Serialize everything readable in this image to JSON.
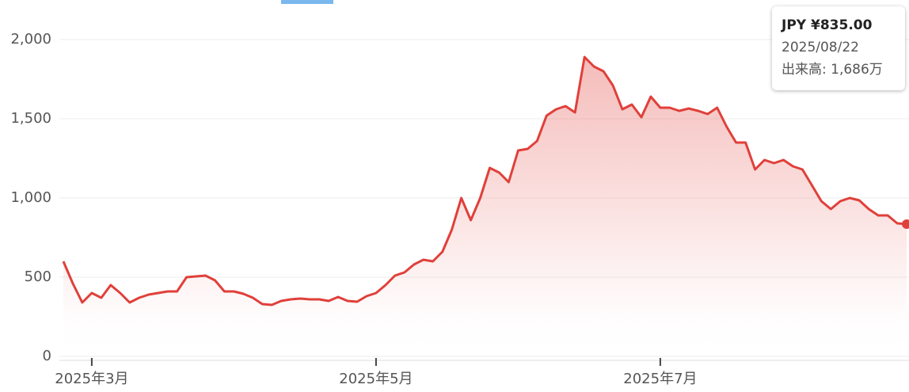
{
  "chart_data": {
    "type": "area",
    "color": "#e0403a",
    "categories": [
      null,
      null,
      null,
      "2025年3月",
      null,
      null,
      null,
      null,
      null,
      null,
      null,
      null,
      null,
      null,
      null,
      null,
      null,
      null,
      null,
      null,
      null,
      null,
      null,
      null,
      null,
      null,
      null,
      null,
      null,
      null,
      null,
      null,
      null,
      "2025年5月",
      null,
      null,
      null,
      null,
      null,
      null,
      null,
      null,
      null,
      null,
      null,
      null,
      null,
      null,
      null,
      null,
      null,
      null,
      null,
      null,
      null,
      null,
      null,
      null,
      null,
      null,
      null,
      null,
      null,
      "2025年7月",
      null,
      null,
      null,
      null,
      null,
      null,
      null,
      null,
      null,
      null,
      null,
      null,
      null,
      null,
      null,
      null,
      null,
      null,
      null,
      null,
      null,
      null,
      null,
      null,
      null,
      null
    ],
    "values": [
      600,
      460,
      340,
      400,
      370,
      450,
      400,
      340,
      370,
      390,
      400,
      410,
      410,
      500,
      505,
      510,
      480,
      410,
      410,
      395,
      370,
      330,
      325,
      350,
      360,
      365,
      360,
      360,
      350,
      375,
      350,
      345,
      380,
      400,
      450,
      510,
      530,
      580,
      610,
      600,
      660,
      800,
      1000,
      860,
      1000,
      1190,
      1160,
      1100,
      1300,
      1310,
      1360,
      1520,
      1560,
      1580,
      1540,
      1890,
      1830,
      1800,
      1710,
      1560,
      1590,
      1510,
      1640,
      1570,
      1570,
      1550,
      1565,
      1550,
      1530,
      1570,
      1450,
      1350,
      1350,
      1180,
      1240,
      1220,
      1240,
      1200,
      1180,
      1080,
      980,
      930,
      980,
      1000,
      985,
      930,
      890,
      890,
      840,
      835
    ],
    "ylim": [
      0,
      2000
    ],
    "yticks": [
      0,
      500,
      {
        "value": 1000,
        "label": "1,000"
      },
      {
        "value": 1500,
        "label": "1,500"
      },
      {
        "value": 2000,
        "label": "2,000"
      }
    ],
    "grid": true
  },
  "tooltip": {
    "price": "JPY ¥835.00",
    "date": "2025/08/22",
    "volume": "出来高: 1,686万"
  }
}
